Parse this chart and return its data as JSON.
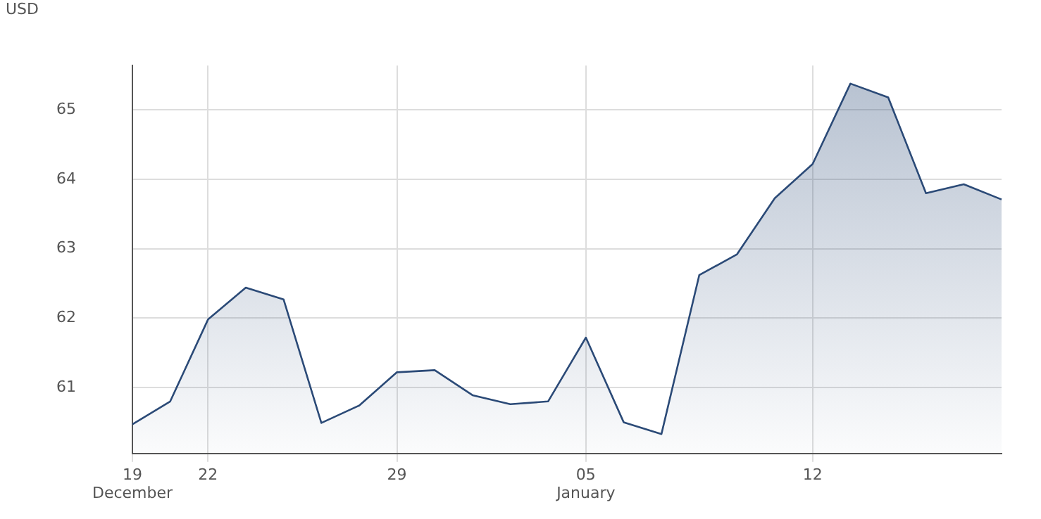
{
  "chart_data": {
    "type": "area",
    "ylabel": "USD",
    "categories": [
      [
        "19",
        "December"
      ],
      null,
      "22",
      null,
      null,
      null,
      null,
      "29",
      null,
      null,
      null,
      null,
      [
        "05",
        "January"
      ],
      null,
      null,
      null,
      null,
      null,
      "12",
      null,
      null,
      null,
      null,
      null
    ],
    "series": [
      {
        "color": "#2b4a77",
        "values": [
          60.47,
          60.8,
          61.98,
          62.44,
          62.27,
          60.49,
          60.74,
          61.22,
          61.25,
          60.89,
          60.76,
          60.8,
          61.72,
          60.5,
          60.33,
          62.62,
          62.92,
          63.73,
          64.22,
          65.38,
          65.18,
          63.8,
          63.93,
          63.71
        ]
      }
    ],
    "ylim": [
      60.05,
      65.64
    ],
    "yticks": [
      61,
      62,
      63,
      64,
      65
    ],
    "grid": true,
    "legend": false,
    "marker": "none",
    "line_style": "solid"
  }
}
